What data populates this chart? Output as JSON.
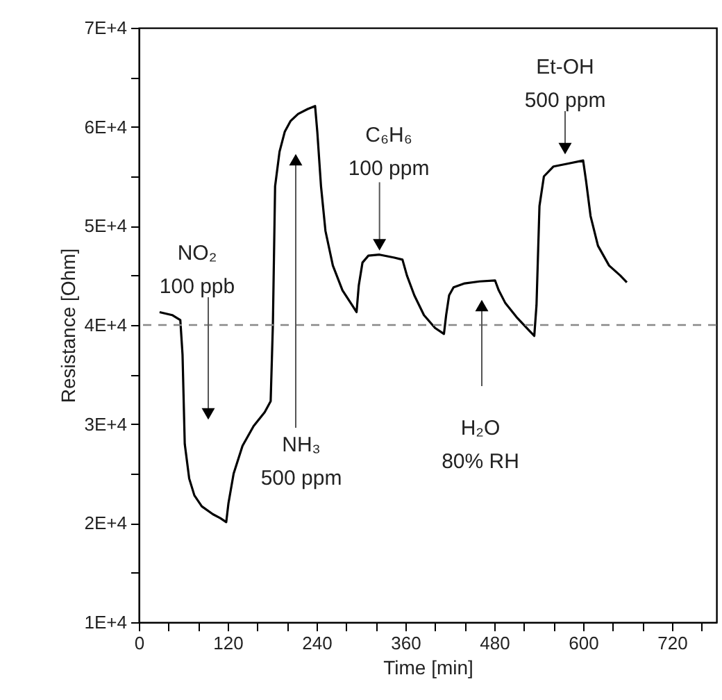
{
  "chart_data": {
    "type": "line",
    "xlabel": "Time [min]",
    "ylabel": "Resistance [Ohm]",
    "xlim": [
      0,
      780
    ],
    "ylim": [
      10000,
      70000
    ],
    "xticks": [
      0,
      {
        "value": 40,
        "label": null
      },
      {
        "value": 80,
        "label": null
      },
      120,
      {
        "value": 160,
        "label": null
      },
      {
        "value": 200,
        "label": null
      },
      240,
      {
        "value": 280,
        "label": null
      },
      {
        "value": 320,
        "label": null
      },
      360,
      {
        "value": 400,
        "label": null
      },
      {
        "value": 440,
        "label": null
      },
      480,
      {
        "value": 520,
        "label": null
      },
      {
        "value": 560,
        "label": null
      },
      600,
      {
        "value": 640,
        "label": null
      },
      {
        "value": 680,
        "label": null
      },
      720,
      {
        "value": 760,
        "label": null
      }
    ],
    "yticks": [
      {
        "value": 10000,
        "label": "1E+4"
      },
      {
        "value": 15000,
        "label": null
      },
      {
        "value": 20000,
        "label": "2E+4"
      },
      {
        "value": 25000,
        "label": null
      },
      {
        "value": 30000,
        "label": "3E+4"
      },
      {
        "value": 35000,
        "label": null
      },
      {
        "value": 40000,
        "label": "4E+4"
      },
      {
        "value": 45000,
        "label": null
      },
      {
        "value": 50000,
        "label": "5E+4"
      },
      {
        "value": 55000,
        "label": null
      },
      {
        "value": 60000,
        "label": "6E+4"
      },
      {
        "value": 65000,
        "label": null
      },
      {
        "value": 70000,
        "label": "7E+4"
      }
    ],
    "grid": false,
    "marker": "none",
    "line_style": "solid",
    "series": [
      {
        "color": "#000000",
        "x": [
          28,
          45,
          56,
          59,
          62,
          68,
          75,
          85,
          100,
          110,
          118,
          121,
          128,
          140,
          155,
          170,
          178,
          181,
          184,
          190,
          197,
          205,
          215,
          228,
          238,
          241,
          246,
          252,
          262,
          275,
          288,
          294,
          297,
          302,
          310,
          325,
          345,
          356,
          362,
          372,
          385,
          400,
          412,
          415,
          419,
          425,
          440,
          460,
          481,
          486,
          495,
          510,
          525,
          534,
          537,
          541,
          547,
          560,
          580,
          600,
          604,
          610,
          620,
          635,
          650,
          659
        ],
        "values": [
          41300,
          41000,
          40500,
          37000,
          28000,
          24500,
          22800,
          21700,
          20900,
          20500,
          20100,
          22000,
          25000,
          27800,
          29800,
          31200,
          32300,
          40000,
          54000,
          57500,
          59500,
          60600,
          61300,
          61800,
          62100,
          59500,
          54000,
          49500,
          46000,
          43500,
          42000,
          41300,
          44000,
          46300,
          47000,
          47100,
          46800,
          46600,
          45000,
          43000,
          41000,
          39700,
          39100,
          41000,
          43000,
          43800,
          44200,
          44400,
          44500,
          43500,
          42200,
          40800,
          39600,
          38900,
          42000,
          52000,
          55000,
          56000,
          56300,
          56600,
          54500,
          51000,
          48000,
          46000,
          45000,
          44300
        ]
      }
    ],
    "ref_lines": [
      {
        "axis": "y",
        "value": 40000,
        "line_style": "dashed",
        "color": "#888888"
      }
    ],
    "annotations": [
      "NO₂\n100 ppb",
      "NH₃\n500 ppm",
      {
        "text": "C₆H₆\n100 ppm",
        "x": 325,
        "y": 48100
      },
      "H₂O\n80%  RH",
      "Et-OH\n500 ppm"
    ]
  }
}
